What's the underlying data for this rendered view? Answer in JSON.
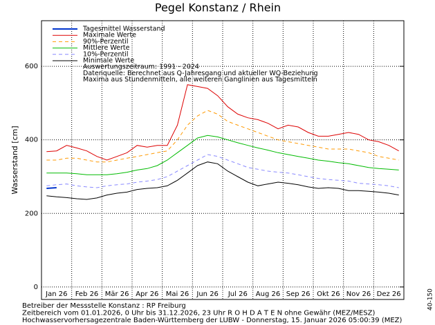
{
  "chart_data": {
    "type": "line",
    "title": "Pegel Konstanz / Rhein",
    "y_label": "Wasserstand [cm]",
    "categories": [
      null,
      "Jan 26",
      null,
      null,
      "Feb 26",
      null,
      null,
      "Mär 26",
      null,
      null,
      "Apr 26",
      null,
      null,
      "Mai 26",
      null,
      null,
      "Jun 26",
      null,
      null,
      "Jul 26",
      null,
      null,
      "Aug 26",
      null,
      null,
      "Sep 26",
      null,
      null,
      "Okt 26",
      null,
      null,
      "Nov 26",
      null,
      null,
      "Dez 26",
      null
    ],
    "series": [
      {
        "name": "Tagesmittel Wasserstand",
        "color": "#0033cc",
        "dash": false,
        "width": 2,
        "values": [
          268,
          270,
          null,
          null,
          null,
          null,
          null,
          null,
          null,
          null,
          null,
          null,
          null,
          null,
          null,
          null,
          null,
          null,
          null,
          null,
          null,
          null,
          null,
          null,
          null,
          null,
          null,
          null,
          null,
          null,
          null,
          null,
          null,
          null,
          null,
          null
        ]
      },
      {
        "name": "Maximale Werte",
        "color": "#dd0000",
        "dash": false,
        "width": 1,
        "values": [
          368,
          370,
          385,
          378,
          370,
          355,
          345,
          355,
          365,
          385,
          380,
          385,
          385,
          440,
          550,
          545,
          540,
          520,
          490,
          470,
          460,
          455,
          445,
          430,
          440,
          435,
          420,
          410,
          410,
          415,
          420,
          415,
          400,
          395,
          385,
          370
        ]
      },
      {
        "name": "90%-Perzentil",
        "color": "#ff9900",
        "dash": true,
        "width": 1,
        "values": [
          345,
          345,
          350,
          350,
          345,
          340,
          340,
          345,
          350,
          355,
          360,
          365,
          370,
          400,
          440,
          465,
          480,
          470,
          450,
          440,
          430,
          420,
          410,
          400,
          395,
          390,
          385,
          380,
          375,
          375,
          375,
          370,
          365,
          355,
          350,
          345
        ]
      },
      {
        "name": "Mittlere Werte",
        "color": "#00bb00",
        "dash": false,
        "width": 1,
        "values": [
          310,
          310,
          310,
          308,
          305,
          305,
          305,
          308,
          312,
          318,
          322,
          330,
          345,
          365,
          385,
          405,
          412,
          408,
          400,
          392,
          385,
          378,
          372,
          365,
          360,
          355,
          350,
          345,
          342,
          338,
          335,
          330,
          325,
          322,
          320,
          318
        ]
      },
      {
        "name": "10%-Perzentil",
        "color": "#8888ff",
        "dash": true,
        "width": 1,
        "values": [
          275,
          278,
          280,
          275,
          272,
          270,
          275,
          278,
          280,
          285,
          288,
          292,
          300,
          315,
          330,
          345,
          360,
          355,
          345,
          335,
          325,
          320,
          315,
          312,
          310,
          305,
          300,
          295,
          292,
          290,
          288,
          282,
          280,
          278,
          275,
          270
        ]
      },
      {
        "name": "Minimale Werte",
        "color": "#000000",
        "dash": false,
        "width": 1,
        "values": [
          248,
          245,
          243,
          240,
          238,
          242,
          250,
          255,
          258,
          265,
          268,
          270,
          275,
          290,
          310,
          330,
          340,
          335,
          315,
          300,
          285,
          275,
          280,
          285,
          282,
          278,
          272,
          268,
          270,
          268,
          262,
          262,
          260,
          258,
          255,
          250
        ]
      }
    ],
    "legend_notes": [
      "Auswertungszeitraum: 1991 - 2024",
      "Datenquelle: Berechnet aus Q-Jahresgang und aktueller WQ-Beziehung",
      "Maxima aus Stundenmitteln, alle weiteren Ganglinien aus Tagesmitteln"
    ],
    "footer": [
      "Betreiber der Messstelle Konstanz : RP Freiburg",
      "Zeitbereich vom 01.01.2026, 0 Uhr bis 31.12.2026, 23 Uhr    R O H D A T E N ohne Gewähr (MEZ/MESZ)",
      "Hochwasservorhersagezentrale Baden-Württemberg der LUBW - Donnerstag, 15. Januar 2026 05:00:39 (MEZ)"
    ],
    "side_label": "40-150",
    "ylim": [
      -34,
      724
    ],
    "yticks": [
      0,
      200,
      400,
      600
    ],
    "grid": true
  }
}
